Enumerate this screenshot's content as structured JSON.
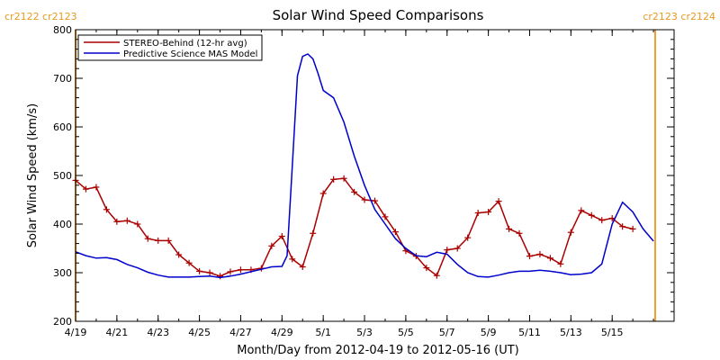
{
  "colors": {
    "stereo": "#aa0000",
    "model": "#0000cc",
    "rotation_marker": "#f0a030",
    "axis": "#000000"
  },
  "chart_data": {
    "type": "line",
    "title": "Solar Wind Speed Comparisons",
    "xlabel": "Month/Day from 2012-04-19 to 2012-05-16 (UT)",
    "ylabel": "Solar Wind Speed (km/s)",
    "xlim": [
      "2012-04-19",
      "2012-05-18"
    ],
    "ylim": [
      200,
      800
    ],
    "y_ticks": [
      200,
      300,
      400,
      500,
      600,
      700,
      800
    ],
    "x_ticks": [
      {
        "date": "2012-04-19",
        "label": "4/19"
      },
      {
        "date": "2012-04-21",
        "label": "4/21"
      },
      {
        "date": "2012-04-23",
        "label": "4/23"
      },
      {
        "date": "2012-04-25",
        "label": "4/25"
      },
      {
        "date": "2012-04-27",
        "label": "4/27"
      },
      {
        "date": "2012-04-29",
        "label": "4/29"
      },
      {
        "date": "2012-05-01",
        "label": "5/1"
      },
      {
        "date": "2012-05-03",
        "label": "5/3"
      },
      {
        "date": "2012-05-05",
        "label": "5/5"
      },
      {
        "date": "2012-05-07",
        "label": "5/7"
      },
      {
        "date": "2012-05-09",
        "label": "5/9"
      },
      {
        "date": "2012-05-11",
        "label": "5/11"
      },
      {
        "date": "2012-05-13",
        "label": "5/13"
      },
      {
        "date": "2012-05-15",
        "label": "5/15"
      }
    ],
    "grid": false,
    "legend_position": "top-left",
    "rotation_markers": [
      {
        "date": "2012-04-19 00:00",
        "label": "cr2122 cr2123",
        "side": "left"
      },
      {
        "date": "2012-05-17 02:00",
        "label": "cr2123 cr2124",
        "side": "right"
      }
    ],
    "series": [
      {
        "name": "STEREO-Behind (12-hr avg)",
        "markers": true,
        "x": [
          "2012-04-19 00:00",
          "2012-04-19 12:00",
          "2012-04-20 00:00",
          "2012-04-20 12:00",
          "2012-04-21 00:00",
          "2012-04-21 12:00",
          "2012-04-22 00:00",
          "2012-04-22 12:00",
          "2012-04-23 00:00",
          "2012-04-23 12:00",
          "2012-04-24 00:00",
          "2012-04-24 12:00",
          "2012-04-25 00:00",
          "2012-04-25 12:00",
          "2012-04-26 00:00",
          "2012-04-26 12:00",
          "2012-04-27 00:00",
          "2012-04-27 12:00",
          "2012-04-28 00:00",
          "2012-04-28 12:00",
          "2012-04-29 00:00",
          "2012-04-29 12:00",
          "2012-04-30 00:00",
          "2012-04-30 12:00",
          "2012-05-01 00:00",
          "2012-05-01 12:00",
          "2012-05-02 00:00",
          "2012-05-02 12:00",
          "2012-05-03 00:00",
          "2012-05-03 12:00",
          "2012-05-04 00:00",
          "2012-05-04 12:00",
          "2012-05-05 00:00",
          "2012-05-05 12:00",
          "2012-05-06 00:00",
          "2012-05-06 12:00",
          "2012-05-07 00:00",
          "2012-05-07 12:00",
          "2012-05-08 00:00",
          "2012-05-08 12:00",
          "2012-05-09 00:00",
          "2012-05-09 12:00",
          "2012-05-10 00:00",
          "2012-05-10 12:00",
          "2012-05-11 00:00",
          "2012-05-11 12:00",
          "2012-05-12 00:00",
          "2012-05-12 12:00",
          "2012-05-13 00:00",
          "2012-05-13 12:00",
          "2012-05-14 00:00",
          "2012-05-14 12:00",
          "2012-05-15 00:00",
          "2012-05-15 12:00",
          "2012-05-16 00:00"
        ],
        "values": [
          490,
          472,
          476,
          430,
          405,
          407,
          400,
          370,
          366,
          366,
          337,
          320,
          303,
          300,
          293,
          302,
          306,
          306,
          309,
          355,
          375,
          328,
          312,
          381,
          463,
          492,
          494,
          466,
          450,
          448,
          415,
          384,
          345,
          334,
          310,
          294,
          347,
          350,
          372,
          423,
          425,
          447,
          390,
          381,
          334,
          338,
          330,
          318,
          383,
          428,
          418,
          408,
          412,
          395,
          390
        ]
      },
      {
        "name": "Predictive Science MAS Model",
        "markers": false,
        "x": [
          "2012-04-19 00:00",
          "2012-04-19 12:00",
          "2012-04-20 00:00",
          "2012-04-20 12:00",
          "2012-04-21 00:00",
          "2012-04-21 12:00",
          "2012-04-22 00:00",
          "2012-04-22 12:00",
          "2012-04-23 00:00",
          "2012-04-23 12:00",
          "2012-04-24 00:00",
          "2012-04-24 12:00",
          "2012-04-25 00:00",
          "2012-04-25 12:00",
          "2012-04-26 00:00",
          "2012-04-26 12:00",
          "2012-04-27 00:00",
          "2012-04-27 12:00",
          "2012-04-28 00:00",
          "2012-04-28 12:00",
          "2012-04-29 00:00",
          "2012-04-29 06:00",
          "2012-04-29 12:00",
          "2012-04-29 18:00",
          "2012-04-30 00:00",
          "2012-04-30 06:00",
          "2012-04-30 12:00",
          "2012-04-30 18:00",
          "2012-05-01 00:00",
          "2012-05-01 12:00",
          "2012-05-02 00:00",
          "2012-05-02 12:00",
          "2012-05-03 00:00",
          "2012-05-03 12:00",
          "2012-05-04 00:00",
          "2012-05-04 12:00",
          "2012-05-05 00:00",
          "2012-05-05 12:00",
          "2012-05-06 00:00",
          "2012-05-06 12:00",
          "2012-05-07 00:00",
          "2012-05-07 12:00",
          "2012-05-08 00:00",
          "2012-05-08 12:00",
          "2012-05-09 00:00",
          "2012-05-09 12:00",
          "2012-05-10 00:00",
          "2012-05-10 12:00",
          "2012-05-11 00:00",
          "2012-05-11 12:00",
          "2012-05-12 00:00",
          "2012-05-12 12:00",
          "2012-05-13 00:00",
          "2012-05-13 12:00",
          "2012-05-14 00:00",
          "2012-05-14 12:00",
          "2012-05-15 00:00",
          "2012-05-15 12:00",
          "2012-05-16 00:00",
          "2012-05-16 12:00",
          "2012-05-17 00:00"
        ],
        "values": [
          343,
          335,
          330,
          331,
          327,
          317,
          310,
          301,
          295,
          291,
          291,
          291,
          292,
          293,
          290,
          293,
          297,
          302,
          307,
          312,
          313,
          335,
          520,
          705,
          745,
          750,
          740,
          710,
          675,
          660,
          610,
          540,
          480,
          430,
          400,
          370,
          350,
          335,
          333,
          342,
          338,
          317,
          300,
          292,
          291,
          295,
          300,
          303,
          303,
          305,
          303,
          300,
          296,
          297,
          300,
          318,
          400,
          445,
          425,
          390,
          365
        ]
      }
    ]
  }
}
